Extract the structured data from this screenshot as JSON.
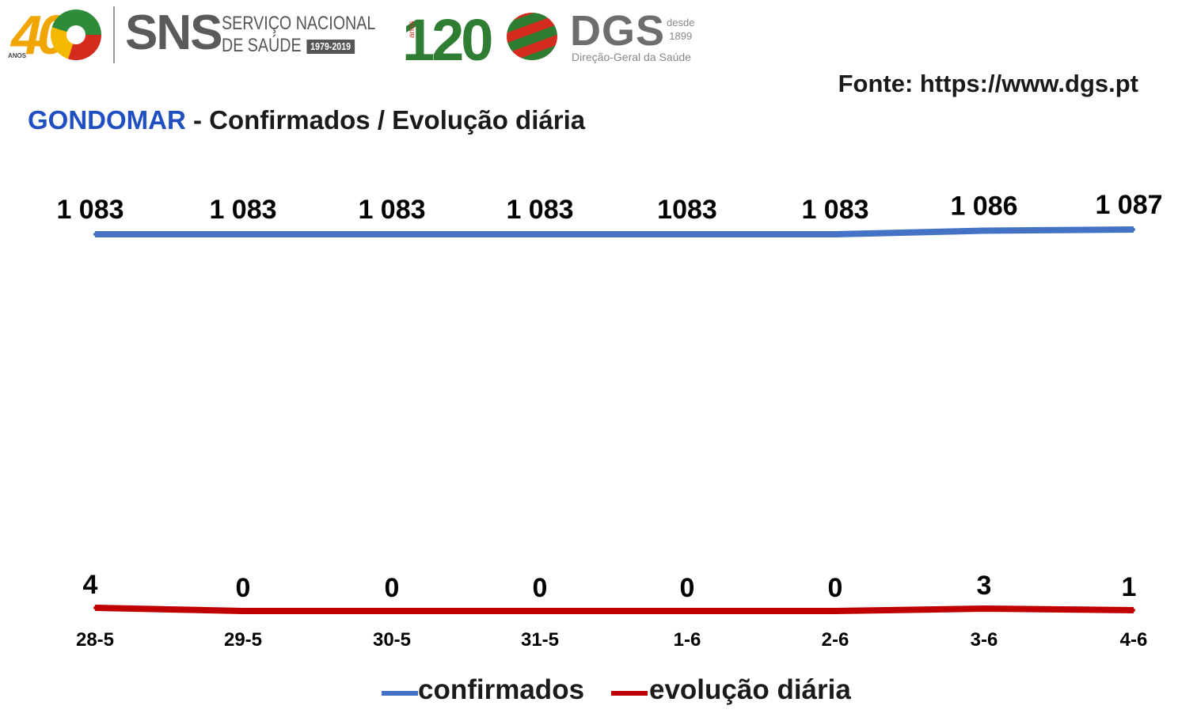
{
  "header": {
    "sns_logo": {
      "anos_label": "ANOS",
      "forty": "40",
      "acronym": "SNS",
      "line1": "SERVIÇO NACIONAL",
      "line2": "DE SAÚDE",
      "years": "1979-2019"
    },
    "dgs_logo": {
      "number": "120",
      "anos_label": "anos",
      "acronym": "DGS",
      "since_word": "desde",
      "since_year": "1899",
      "subtitle": "Direção-Geral da Saúde"
    },
    "source": "Fonte: https://www.dgs.pt"
  },
  "title": {
    "place": "GONDOMAR",
    "rest": " - Confirmados / Evolução diária"
  },
  "colors": {
    "confirmed": "#4472c4",
    "daily": "#c00000",
    "title_accent": "#1f4fc1"
  },
  "chart_data": {
    "type": "line",
    "categories": [
      "28-5",
      "29-5",
      "30-5",
      "31-5",
      "1-6",
      "2-6",
      "3-6",
      "4-6"
    ],
    "series": [
      {
        "name": "confirmados",
        "values": [
          1083,
          1083,
          1083,
          1083,
          1083,
          1083,
          1086,
          1087
        ],
        "labels": [
          "1 083",
          "1 083",
          "1 083",
          "1 083",
          "1083",
          "1 083",
          "1 086",
          "1 087"
        ],
        "color": "#4472c4"
      },
      {
        "name": "evolução diária",
        "values": [
          4,
          0,
          0,
          0,
          0,
          0,
          3,
          1
        ],
        "labels": [
          "4",
          "0",
          "0",
          "0",
          "0",
          "0",
          "3",
          "1"
        ],
        "color": "#c00000"
      }
    ],
    "legend": "bottom",
    "grid": false,
    "data_labels": true
  }
}
